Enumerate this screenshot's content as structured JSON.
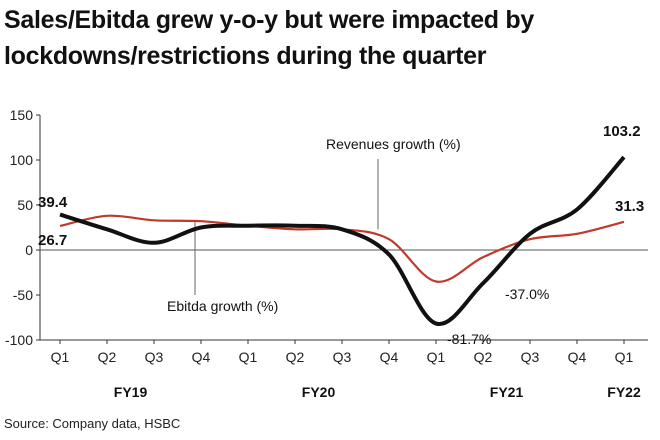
{
  "title": "Sales/Ebitda grew y-o-y but were impacted by lockdowns/restrictions during the quarter",
  "source": "Source: Company data, HSBC",
  "colors": {
    "revenues": "#c0392b",
    "ebitda": "#111111",
    "grid": "#cccccc",
    "zero": "#555555"
  },
  "chart_data": {
    "type": "line",
    "categories": [
      "Q1",
      "Q2",
      "Q3",
      "Q4",
      "Q1",
      "Q2",
      "Q3",
      "Q4",
      "Q1",
      "Q2",
      "Q3",
      "Q4",
      "Q1"
    ],
    "fiscal_years": [
      "FY19",
      "FY20",
      "FY21",
      "FY22"
    ],
    "yticks": [
      150,
      100,
      50,
      0,
      -50,
      -100
    ],
    "ylim": [
      -100,
      150
    ],
    "series": [
      {
        "name": "Revenues growth (%)",
        "color": "#c0392b",
        "values": [
          26.7,
          38,
          33,
          32,
          27,
          23,
          23,
          12,
          -35,
          -8,
          12,
          18,
          31.3
        ]
      },
      {
        "name": "Ebitda growth (%)",
        "color": "#111111",
        "values": [
          39.4,
          23,
          8,
          25,
          27,
          27,
          23,
          -5,
          -81.7,
          -37.0,
          18,
          45,
          103.2
        ]
      }
    ],
    "annotations": {
      "ebitda_start": "39.4",
      "revenue_start": "26.7",
      "ebitda_end": "103.2",
      "revenue_end": "31.3",
      "ebitda_min": "-81.7%",
      "ebitda_q2fy21": "-37.0%",
      "revenues_label": "Revenues growth (%)",
      "ebitda_label": "Ebitda growth (%)"
    }
  }
}
